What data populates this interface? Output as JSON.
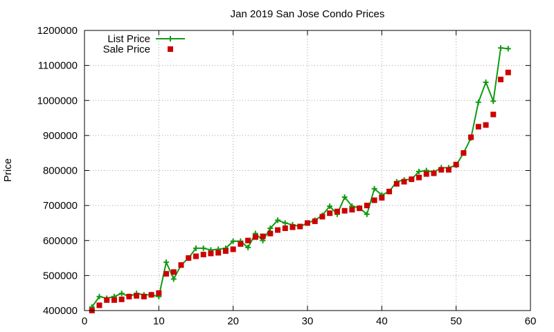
{
  "chart_data": {
    "type": "line",
    "title": "Jan 2019 San Jose Condo Prices",
    "xlabel": "",
    "ylabel": "Price",
    "xlim": [
      0,
      60
    ],
    "ylim": [
      400000,
      1200000
    ],
    "xticks": [
      0,
      10,
      20,
      30,
      40,
      50,
      60
    ],
    "yticks": [
      400000,
      500000,
      600000,
      700000,
      800000,
      900000,
      1000000,
      1100000,
      1200000
    ],
    "grid": true,
    "legend_position": "top-left",
    "series": [
      {
        "name": "List Price",
        "style": "line-with-plus-points",
        "color": "#119911",
        "x": [
          1,
          2,
          3,
          4,
          5,
          6,
          7,
          8,
          9,
          10,
          11,
          12,
          13,
          14,
          15,
          16,
          17,
          18,
          19,
          20,
          21,
          22,
          23,
          24,
          25,
          26,
          27,
          28,
          29,
          30,
          31,
          32,
          33,
          34,
          35,
          36,
          37,
          38,
          39,
          40,
          41,
          42,
          43,
          44,
          45,
          46,
          47,
          48,
          49,
          50,
          51,
          52,
          53,
          54,
          55,
          56,
          57
        ],
        "values": [
          410000,
          440000,
          435000,
          440000,
          449000,
          440000,
          449000,
          445000,
          445000,
          440000,
          538000,
          490000,
          530000,
          550000,
          578000,
          578000,
          573000,
          575000,
          578000,
          598000,
          598000,
          580000,
          620000,
          600000,
          635000,
          658000,
          650000,
          645000,
          640000,
          650000,
          658000,
          672000,
          698000,
          675000,
          724000,
          698000,
          693000,
          675000,
          748000,
          730000,
          740000,
          768000,
          773000,
          775000,
          797000,
          800000,
          795000,
          808000,
          808000,
          815000,
          850000,
          893000,
          995000,
          1052000,
          998000,
          1150000,
          1148000
        ]
      },
      {
        "name": "Sale Price",
        "style": "points-square",
        "color": "#cc0000",
        "x": [
          1,
          2,
          3,
          4,
          5,
          6,
          7,
          8,
          9,
          10,
          11,
          12,
          13,
          14,
          15,
          16,
          17,
          18,
          19,
          20,
          21,
          22,
          23,
          24,
          25,
          26,
          27,
          28,
          29,
          30,
          31,
          32,
          33,
          34,
          35,
          36,
          37,
          38,
          39,
          40,
          41,
          42,
          43,
          44,
          45,
          46,
          47,
          48,
          49,
          50,
          51,
          52,
          53,
          54,
          55,
          56,
          57
        ],
        "values": [
          400000,
          415000,
          430000,
          430000,
          432000,
          440000,
          442000,
          440000,
          445000,
          450000,
          505000,
          510000,
          530000,
          550000,
          555000,
          560000,
          563000,
          565000,
          570000,
          575000,
          590000,
          600000,
          610000,
          612000,
          620000,
          630000,
          635000,
          638000,
          640000,
          650000,
          655000,
          668000,
          678000,
          683000,
          685000,
          688000,
          692000,
          700000,
          715000,
          722000,
          740000,
          762000,
          768000,
          775000,
          780000,
          790000,
          792000,
          802000,
          802000,
          817000,
          850000,
          895000,
          925000,
          930000,
          960000,
          1060000,
          1080000
        ]
      }
    ]
  }
}
